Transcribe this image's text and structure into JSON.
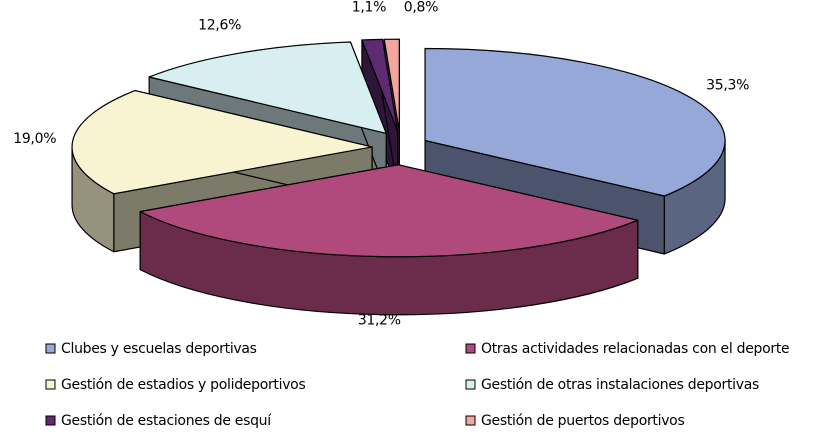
{
  "chart_data": {
    "type": "pie3d",
    "categories": [
      "Clubes y escuelas deportivas",
      "Otras actividades relacionadas con el deporte",
      "Gestión de estadios y polideportivos",
      "Gestión de otras instalaciones deportivas",
      "Gestión de estaciones de esquí",
      "Gestión de puertos deportivos"
    ],
    "values": [
      35.3,
      31.2,
      19.0,
      12.6,
      1.1,
      0.8
    ],
    "value_labels": [
      "35,3%",
      "31,2%",
      "19,0%",
      "12,6%",
      "1,1%",
      "0,8%"
    ],
    "colors": [
      "#95a8d8",
      "#b04a7c",
      "#f8f4d2",
      "#d8eff1",
      "#5e2a72",
      "#f3a5a0"
    ],
    "legend": "bottom"
  }
}
